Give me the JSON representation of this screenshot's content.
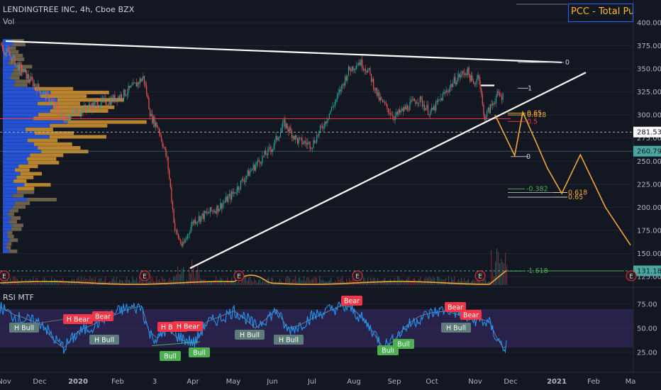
{
  "header": {
    "symbol_line": "LENDINGTREE INC, 4h, Cboe BZX",
    "volume_label": "Vol",
    "rsi_label": "RSI MTF",
    "indicator_box": "PCC - Total Put"
  },
  "colors": {
    "background": "#131722",
    "grid": "#1f2433",
    "candle_up": "#26a69a",
    "candle_down": "#ef5350",
    "trendline": "#ffffff",
    "projection": "#f0a834",
    "resistance": "#f23645",
    "profile_blue": "#2962ff",
    "profile_orange": "#f0a834",
    "rsi_line": "#2196f3",
    "rsi_band": "#3b2a6a",
    "bear_label": "#f23645",
    "bull_label": "#4caf50",
    "hbull_label": "#5e7d7a",
    "support_teal": "#4aa7a0"
  },
  "chart_data": [
    {
      "type": "candlestick",
      "title": "LENDINGTREE INC, 4h, Cboe BZX",
      "ylim": [
        125,
        400
      ],
      "y_ticks": [
        125,
        150,
        175,
        200,
        225,
        250,
        275,
        300,
        325,
        350,
        375,
        400
      ],
      "y_tick_labels": [
        "125.00",
        "150.00",
        "175.00",
        "200.00",
        "225.00",
        "250.00",
        "275.00",
        "300.00",
        "325.00",
        "350.00",
        "375.00",
        "400.00"
      ],
      "x_tick_labels": [
        "Nov",
        "Dec",
        "2020",
        "Feb",
        "3",
        "Apr",
        "May",
        "Jun",
        "Jul",
        "Aug",
        "Sep",
        "Oct",
        "Nov",
        "Dec",
        "2021",
        "Feb",
        "Ma"
      ],
      "price_path": [
        [
          "2019-10-15",
          378
        ],
        [
          "2019-10-25",
          372
        ],
        [
          "2019-11-10",
          358
        ],
        [
          "2019-11-25",
          335
        ],
        [
          "2019-12-10",
          316
        ],
        [
          "2019-12-20",
          296
        ],
        [
          "2020-01-01",
          304
        ],
        [
          "2020-01-15",
          312
        ],
        [
          "2020-01-25",
          315
        ],
        [
          "2020-02-05",
          322
        ],
        [
          "2020-02-15",
          332
        ],
        [
          "2020-02-22",
          341
        ],
        [
          "2020-02-28",
          298
        ],
        [
          "2020-03-05",
          286
        ],
        [
          "2020-03-12",
          250
        ],
        [
          "2020-03-18",
          175
        ],
        [
          "2020-03-24",
          157
        ],
        [
          "2020-04-01",
          185
        ],
        [
          "2020-04-10",
          192
        ],
        [
          "2020-04-20",
          200
        ],
        [
          "2020-05-01",
          215
        ],
        [
          "2020-05-10",
          232
        ],
        [
          "2020-05-20",
          248
        ],
        [
          "2020-06-01",
          265
        ],
        [
          "2020-06-10",
          291
        ],
        [
          "2020-06-20",
          272
        ],
        [
          "2020-07-01",
          268
        ],
        [
          "2020-07-10",
          291
        ],
        [
          "2020-07-20",
          320
        ],
        [
          "2020-07-28",
          348
        ],
        [
          "2020-08-05",
          358
        ],
        [
          "2020-08-12",
          348
        ],
        [
          "2020-08-20",
          318
        ],
        [
          "2020-09-01",
          298
        ],
        [
          "2020-09-10",
          307
        ],
        [
          "2020-09-20",
          318
        ],
        [
          "2020-09-30",
          302
        ],
        [
          "2020-10-10",
          322
        ],
        [
          "2020-10-20",
          340
        ],
        [
          "2020-10-28",
          348
        ],
        [
          "2020-11-02",
          332
        ],
        [
          "2020-11-06",
          345
        ],
        [
          "2020-11-10",
          297
        ],
        [
          "2020-11-14",
          305
        ],
        [
          "2020-11-20",
          321
        ],
        [
          "2020-11-25",
          320
        ]
      ],
      "last_price": "281.53",
      "price_tags": [
        {
          "label": "281.53",
          "value": 281.53,
          "color": "#ffffff",
          "text_color": "#131722"
        },
        {
          "label": "260.79",
          "value": 260.79,
          "color": "#4aa7a0",
          "text_color": "#131722"
        },
        {
          "label": "131.18",
          "value": 131.18,
          "color": "#4aa7a0",
          "text_color": "#131722"
        }
      ],
      "fib_levels": [
        {
          "label": "0",
          "value": 357
        },
        {
          "label": "1",
          "value": 329
        },
        {
          "label": "0.65",
          "value": 302
        },
        {
          "label": "0.618",
          "value": 300
        },
        {
          "label": "0.5",
          "value": 293
        },
        {
          "label": "0",
          "value": 255
        },
        {
          "label": "-0.382",
          "value": 220
        },
        {
          "label": "0.618",
          "value": 216
        },
        {
          "label": "0.65",
          "value": 211
        },
        {
          "label": "-1.618",
          "value": 131
        }
      ],
      "resistance_level": 296,
      "projection_path": [
        [
          "2020-11-28",
          300
        ],
        [
          "2020-12-04",
          256
        ],
        [
          "2020-12-10",
          303
        ],
        [
          "2020-12-20",
          270
        ],
        [
          "2020-12-28",
          243
        ],
        [
          "2021-01-08",
          215
        ],
        [
          "2021-01-22",
          257
        ],
        [
          "2021-02-10",
          200
        ],
        [
          "2021-03-01",
          159
        ]
      ],
      "earnings_markers": [
        "E",
        "E",
        "E",
        "E",
        "E",
        "E"
      ]
    },
    {
      "type": "line",
      "title": "RSI MTF",
      "ylim": [
        15,
        80
      ],
      "y_ticks": [
        25,
        50,
        75
      ],
      "y_tick_labels": [
        "25.00",
        "50.00",
        "75.00"
      ],
      "band": [
        30,
        70
      ],
      "signals": [
        {
          "label": "H Bull",
          "kind": "hbull"
        },
        {
          "label": "H Bear",
          "kind": "bear"
        },
        {
          "label": "Bear",
          "kind": "bear"
        },
        {
          "label": "H Bull",
          "kind": "hbull"
        },
        {
          "label": "H Bear",
          "kind": "bear"
        },
        {
          "label": "H Bear",
          "kind": "bear"
        },
        {
          "label": "Bull",
          "kind": "bull"
        },
        {
          "label": "Bull",
          "kind": "bull"
        },
        {
          "label": "H Bull",
          "kind": "hbull"
        },
        {
          "label": "H Bull",
          "kind": "hbull"
        },
        {
          "label": "Bear",
          "kind": "bear"
        },
        {
          "label": "Bull",
          "kind": "bull"
        },
        {
          "label": "Bull",
          "kind": "bull"
        },
        {
          "label": "Bear",
          "kind": "bear"
        },
        {
          "label": "H Bull",
          "kind": "hbull"
        },
        {
          "label": "Bear",
          "kind": "bear"
        }
      ]
    }
  ]
}
